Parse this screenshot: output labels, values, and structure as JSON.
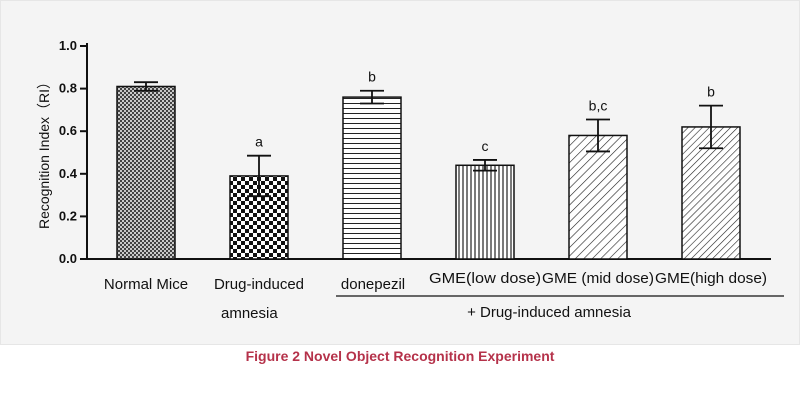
{
  "caption": "Figure 2 Novel Object Recognition Experiment",
  "chart_data": {
    "type": "bar",
    "title": "",
    "ylabel": "Recognition Index（RI）",
    "xlabel": "",
    "ylim": [
      0,
      1.0
    ],
    "yticks": [
      "0.0",
      "0.2",
      "0.4",
      "0.6",
      "0.8",
      "1.0"
    ],
    "categories": [
      {
        "label": "Normal Mice",
        "label2": "",
        "value": 0.81,
        "error": 0.02,
        "sig": "",
        "pattern": "crosshatch-fine"
      },
      {
        "label": "Drug-induced",
        "label2": "amnesia",
        "value": 0.39,
        "error": 0.095,
        "sig": "a",
        "pattern": "checker"
      },
      {
        "label": "donepezil",
        "label2": "",
        "value": 0.76,
        "error": 0.03,
        "sig": "b",
        "pattern": "horizontal-lines"
      },
      {
        "label": "GME(low dose)",
        "label2": "",
        "value": 0.44,
        "error": 0.025,
        "sig": "c",
        "pattern": "vertical-lines"
      },
      {
        "label": "GME (mid dose)",
        "label2": "",
        "value": 0.58,
        "error": 0.075,
        "sig": "b,c",
        "pattern": "diagonal-lines"
      },
      {
        "label": "GME(high dose)",
        "label2": "",
        "value": 0.62,
        "error": 0.1,
        "sig": "b",
        "pattern": "diagonal-lines-dense"
      }
    ],
    "group_label": "+ Drug-induced amnesia",
    "grid": false
  }
}
